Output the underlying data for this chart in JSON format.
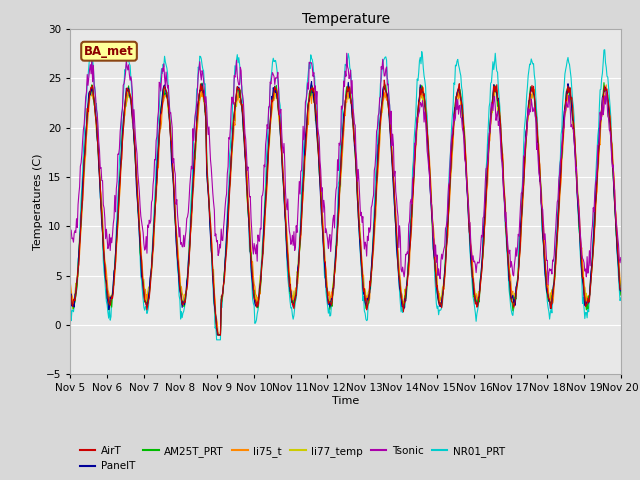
{
  "title": "Temperature",
  "xlabel": "Time",
  "ylabel": "Temperatures (C)",
  "ylim": [
    -5,
    30
  ],
  "annotation": "BA_met",
  "x_tick_labels": [
    "Nov 5",
    "Nov 6",
    "Nov 7",
    "Nov 8",
    "Nov 9",
    "Nov 10",
    "Nov 11",
    "Nov 12",
    "Nov 13",
    "Nov 14",
    "Nov 15",
    "Nov 16",
    "Nov 17",
    "Nov 18",
    "Nov 19",
    "Nov 20"
  ],
  "series": {
    "AirT": {
      "color": "#cc0000",
      "lw": 0.8
    },
    "PanelT": {
      "color": "#000099",
      "lw": 0.8
    },
    "AM25T_PRT": {
      "color": "#00bb00",
      "lw": 0.8
    },
    "li75_t": {
      "color": "#ff8800",
      "lw": 0.8
    },
    "li77_temp": {
      "color": "#cccc00",
      "lw": 0.8
    },
    "Tsonic": {
      "color": "#aa00aa",
      "lw": 0.8
    },
    "NR01_PRT": {
      "color": "#00cccc",
      "lw": 0.8
    }
  },
  "bg_color": "#d8d8d8",
  "plot_bg": "#e8e8e8",
  "n_days": 15,
  "pts_per_day": 48
}
